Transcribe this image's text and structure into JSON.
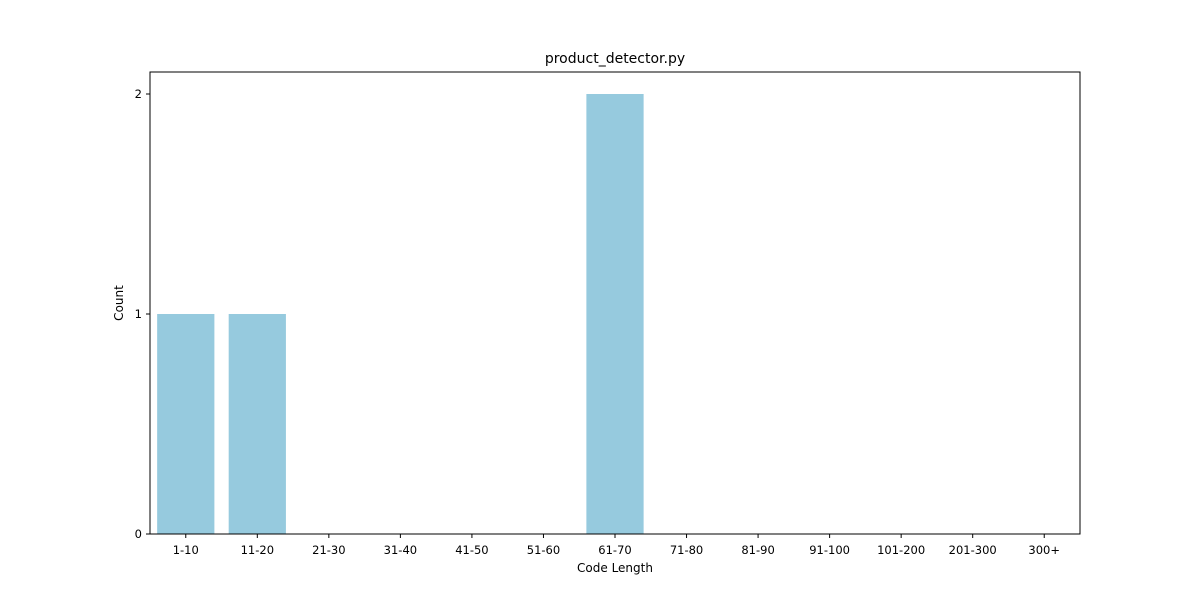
{
  "chart_data": {
    "type": "bar",
    "title": "product_detector.py",
    "xlabel": "Code Length",
    "ylabel": "Count",
    "categories": [
      "1-10",
      "11-20",
      "21-30",
      "31-40",
      "41-50",
      "51-60",
      "61-70",
      "71-80",
      "81-90",
      "91-100",
      "101-200",
      "201-300",
      "300+"
    ],
    "values": [
      1,
      1,
      0,
      0,
      0,
      0,
      2,
      0,
      0,
      0,
      0,
      0,
      0
    ],
    "ylim": [
      0,
      2.1
    ],
    "yticks": [
      0,
      1,
      2
    ],
    "grid": false,
    "legend": "none",
    "bar_color": "#96cade"
  }
}
